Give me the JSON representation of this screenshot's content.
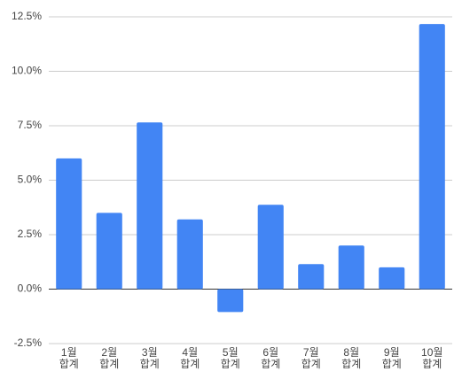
{
  "chart_data": {
    "type": "bar",
    "categories": [
      "1월\n합계",
      "2월\n합계",
      "3월\n합계",
      "4월\n합계",
      "5월\n합계",
      "6월\n합계",
      "7월\n합계",
      "8월\n합계",
      "9월\n합계",
      "10월\n합계"
    ],
    "values": [
      6.0,
      3.5,
      7.65,
      3.2,
      -1.05,
      3.87,
      1.15,
      2.0,
      1.0,
      12.17
    ],
    "color": "#4285f4",
    "ylim": [
      -2.5,
      12.5
    ],
    "yticks": [
      {
        "value": -2.5,
        "label": "-2.5%"
      },
      {
        "value": 0,
        "label": "0.0%"
      },
      {
        "value": 2.5,
        "label": "2.5%"
      },
      {
        "value": 5,
        "label": "5.0%"
      },
      {
        "value": 7.5,
        "label": "7.5%"
      },
      {
        "value": 10,
        "label": "10.0%"
      },
      {
        "value": 12.5,
        "label": "12.5%"
      }
    ],
    "grid": true
  }
}
